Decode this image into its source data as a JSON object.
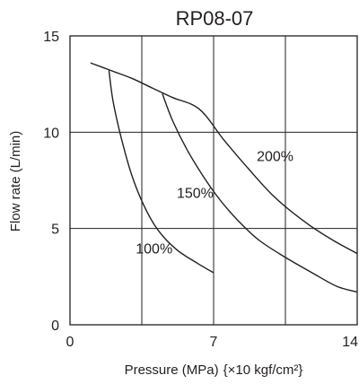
{
  "chart_data": {
    "type": "line",
    "title": "RP08-07",
    "xlabel": "Pressure (MPa)",
    "xlabel_unit": "{×10 kgf/cm²}",
    "ylabel": "Flow rate (L/min)",
    "xlim": [
      0,
      14
    ],
    "ylim": [
      0,
      15
    ],
    "xgrid": [
      3.5,
      7,
      10.5,
      14
    ],
    "ygrid": [
      5,
      10,
      15
    ],
    "x_ticks": [
      {
        "value": 0,
        "label": "0"
      },
      {
        "value": 7,
        "label": "7"
      },
      {
        "value": 14,
        "label": "14"
      }
    ],
    "y_ticks": [
      {
        "value": 0,
        "label": "0"
      },
      {
        "value": 5,
        "label": "5"
      },
      {
        "value": 10,
        "label": "10"
      },
      {
        "value": 15,
        "label": "15"
      }
    ],
    "grid": true,
    "series": [
      {
        "name": "200%",
        "x": [
          1.0,
          2.0,
          3.0,
          4.0,
          5.0,
          6.3,
          7.5,
          8.7,
          10.0,
          11.5,
          12.8,
          14.0
        ],
        "y": [
          13.6,
          13.2,
          12.8,
          12.3,
          11.8,
          11.2,
          9.6,
          8.1,
          6.6,
          5.3,
          4.4,
          3.7
        ]
      },
      {
        "name": "150%",
        "x": [
          4.5,
          5.0,
          5.7,
          6.5,
          7.3,
          8.2,
          9.2,
          10.5,
          11.8,
          13.0,
          14.0
        ],
        "y": [
          12.0,
          10.6,
          9.1,
          7.7,
          6.5,
          5.4,
          4.4,
          3.5,
          2.7,
          2.0,
          1.7
        ]
      },
      {
        "name": "100%",
        "x": [
          1.9,
          2.1,
          2.5,
          3.0,
          3.6,
          4.3,
          5.2,
          6.2,
          7.0
        ],
        "y": [
          13.2,
          11.6,
          9.7,
          7.8,
          6.2,
          4.9,
          3.9,
          3.2,
          2.7
        ]
      }
    ],
    "series_label_anchor": [
      {
        "name": "200%",
        "x": 10.0,
        "y": 8.5
      },
      {
        "name": "150%",
        "x": 6.1,
        "y": 6.6
      },
      {
        "name": "100%",
        "x": 4.1,
        "y": 3.7
      }
    ]
  }
}
